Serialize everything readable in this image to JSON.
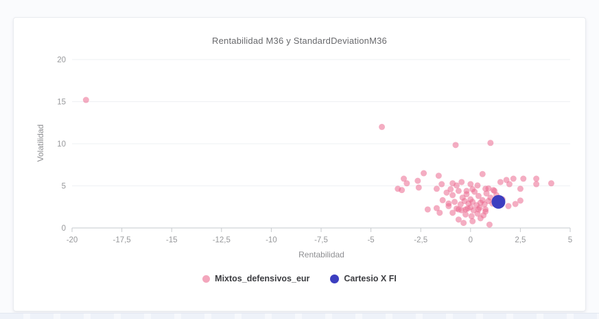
{
  "chart_data": {
    "type": "scatter",
    "title": "Rentabilidad M36 y StandardDeviationM36",
    "xlabel": "Rentabilidad",
    "ylabel": "Volatilidad",
    "xlim": [
      -20,
      5
    ],
    "ylim": [
      0,
      20
    ],
    "x_ticks": [
      -20,
      -17.5,
      -15,
      -12.5,
      -10,
      -7.5,
      -5,
      -2.5,
      0,
      2.5,
      5
    ],
    "x_tick_labels": [
      "-20",
      "-17,5",
      "-15",
      "-12,5",
      "-10",
      "-7,5",
      "-5",
      "-2,5",
      "0",
      "2,5",
      "5"
    ],
    "y_ticks": [
      0,
      5,
      10,
      15,
      20
    ],
    "y_tick_labels": [
      "0",
      "5",
      "10",
      "15",
      "20"
    ],
    "grid": "horizontal",
    "legend_position": "bottom",
    "colors": {
      "grid_line": "#eef0f3",
      "axis_line": "#c6cacd",
      "tick_label": "#97989b",
      "axis_title": "#8d8e91",
      "title": "#68696c",
      "legend_text": "#3c3d41"
    },
    "series": [
      {
        "name": "Mixtos_defensivos_eur",
        "color": "#eb6a8f",
        "opacity": 0.55,
        "marker_radius": 4.5,
        "points": [
          [
            -19.3,
            15.2
          ],
          [
            -4.45,
            12.0
          ],
          [
            -0.75,
            9.85
          ],
          [
            1.0,
            10.1
          ],
          [
            -3.65,
            4.65
          ],
          [
            -3.45,
            4.5
          ],
          [
            -3.35,
            5.85
          ],
          [
            -3.2,
            5.3
          ],
          [
            -2.65,
            5.6
          ],
          [
            -2.6,
            4.8
          ],
          [
            -2.35,
            6.5
          ],
          [
            -1.6,
            6.2
          ],
          [
            -1.7,
            4.65
          ],
          [
            -1.45,
            5.2
          ],
          [
            -0.9,
            5.3
          ],
          [
            -0.7,
            5.05
          ],
          [
            -0.45,
            5.45
          ],
          [
            0.0,
            5.2
          ],
          [
            0.35,
            5.05
          ],
          [
            0.6,
            6.4
          ],
          [
            0.75,
            4.65
          ],
          [
            1.15,
            4.5
          ],
          [
            1.5,
            5.45
          ],
          [
            1.8,
            5.7
          ],
          [
            1.95,
            5.2
          ],
          [
            2.15,
            5.85
          ],
          [
            2.5,
            4.65
          ],
          [
            2.65,
            5.85
          ],
          [
            3.3,
            5.85
          ],
          [
            3.3,
            5.2
          ],
          [
            4.05,
            5.3
          ],
          [
            -2.15,
            2.2
          ],
          [
            -1.7,
            2.35
          ],
          [
            -1.55,
            1.8
          ],
          [
            -1.1,
            2.6
          ],
          [
            -0.9,
            1.8
          ],
          [
            -0.6,
            2.2
          ],
          [
            -0.25,
            2.2
          ],
          [
            0.0,
            2.45
          ],
          [
            0.4,
            2.2
          ],
          [
            0.75,
            1.95
          ],
          [
            1.9,
            2.6
          ],
          [
            2.25,
            2.85
          ],
          [
            2.5,
            3.25
          ],
          [
            -0.6,
            1.0
          ],
          [
            -0.35,
            0.6
          ],
          [
            0.1,
            0.8
          ],
          [
            0.5,
            1.15
          ],
          [
            0.95,
            0.4
          ],
          [
            -1.2,
            4.2
          ],
          [
            -1.0,
            4.6
          ],
          [
            -0.9,
            3.9
          ],
          [
            -0.6,
            4.4
          ],
          [
            -0.4,
            3.6
          ],
          [
            -0.2,
            4.0
          ],
          [
            0.0,
            3.4
          ],
          [
            0.2,
            4.3
          ],
          [
            0.4,
            3.8
          ],
          [
            0.6,
            3.3
          ],
          [
            0.8,
            4.1
          ],
          [
            1.0,
            3.6
          ],
          [
            1.2,
            4.4
          ],
          [
            -1.4,
            3.3
          ],
          [
            -1.1,
            2.9
          ],
          [
            -0.8,
            3.1
          ],
          [
            -0.5,
            2.8
          ],
          [
            -0.3,
            3.2
          ],
          [
            -0.1,
            2.9
          ],
          [
            0.1,
            3.1
          ],
          [
            0.3,
            2.7
          ],
          [
            0.5,
            3.0
          ],
          [
            0.7,
            2.8
          ],
          [
            0.9,
            3.2
          ],
          [
            1.1,
            2.9
          ],
          [
            -0.7,
            2.3
          ],
          [
            -0.45,
            2.1
          ],
          [
            -0.15,
            2.3
          ],
          [
            0.15,
            2.1
          ],
          [
            0.45,
            2.4
          ],
          [
            0.75,
            2.2
          ],
          [
            -0.25,
            1.6
          ],
          [
            0.05,
            1.4
          ],
          [
            0.35,
            1.7
          ],
          [
            0.65,
            1.5
          ],
          [
            0.9,
            4.7
          ],
          [
            1.3,
            3.9
          ],
          [
            1.6,
            3.4
          ],
          [
            -0.2,
            4.4
          ],
          [
            0.1,
            4.6
          ]
        ]
      },
      {
        "name": "Cartesio X FI",
        "color": "#3c3ec0",
        "opacity": 1,
        "marker_radius": 10,
        "points": [
          [
            1.4,
            3.1
          ]
        ]
      }
    ]
  },
  "legend": {
    "items": [
      {
        "label": "Mixtos_defensivos_eur",
        "color": "#f3a6bc"
      },
      {
        "label": "Cartesio X FI",
        "color": "#3c3ec0"
      }
    ]
  }
}
